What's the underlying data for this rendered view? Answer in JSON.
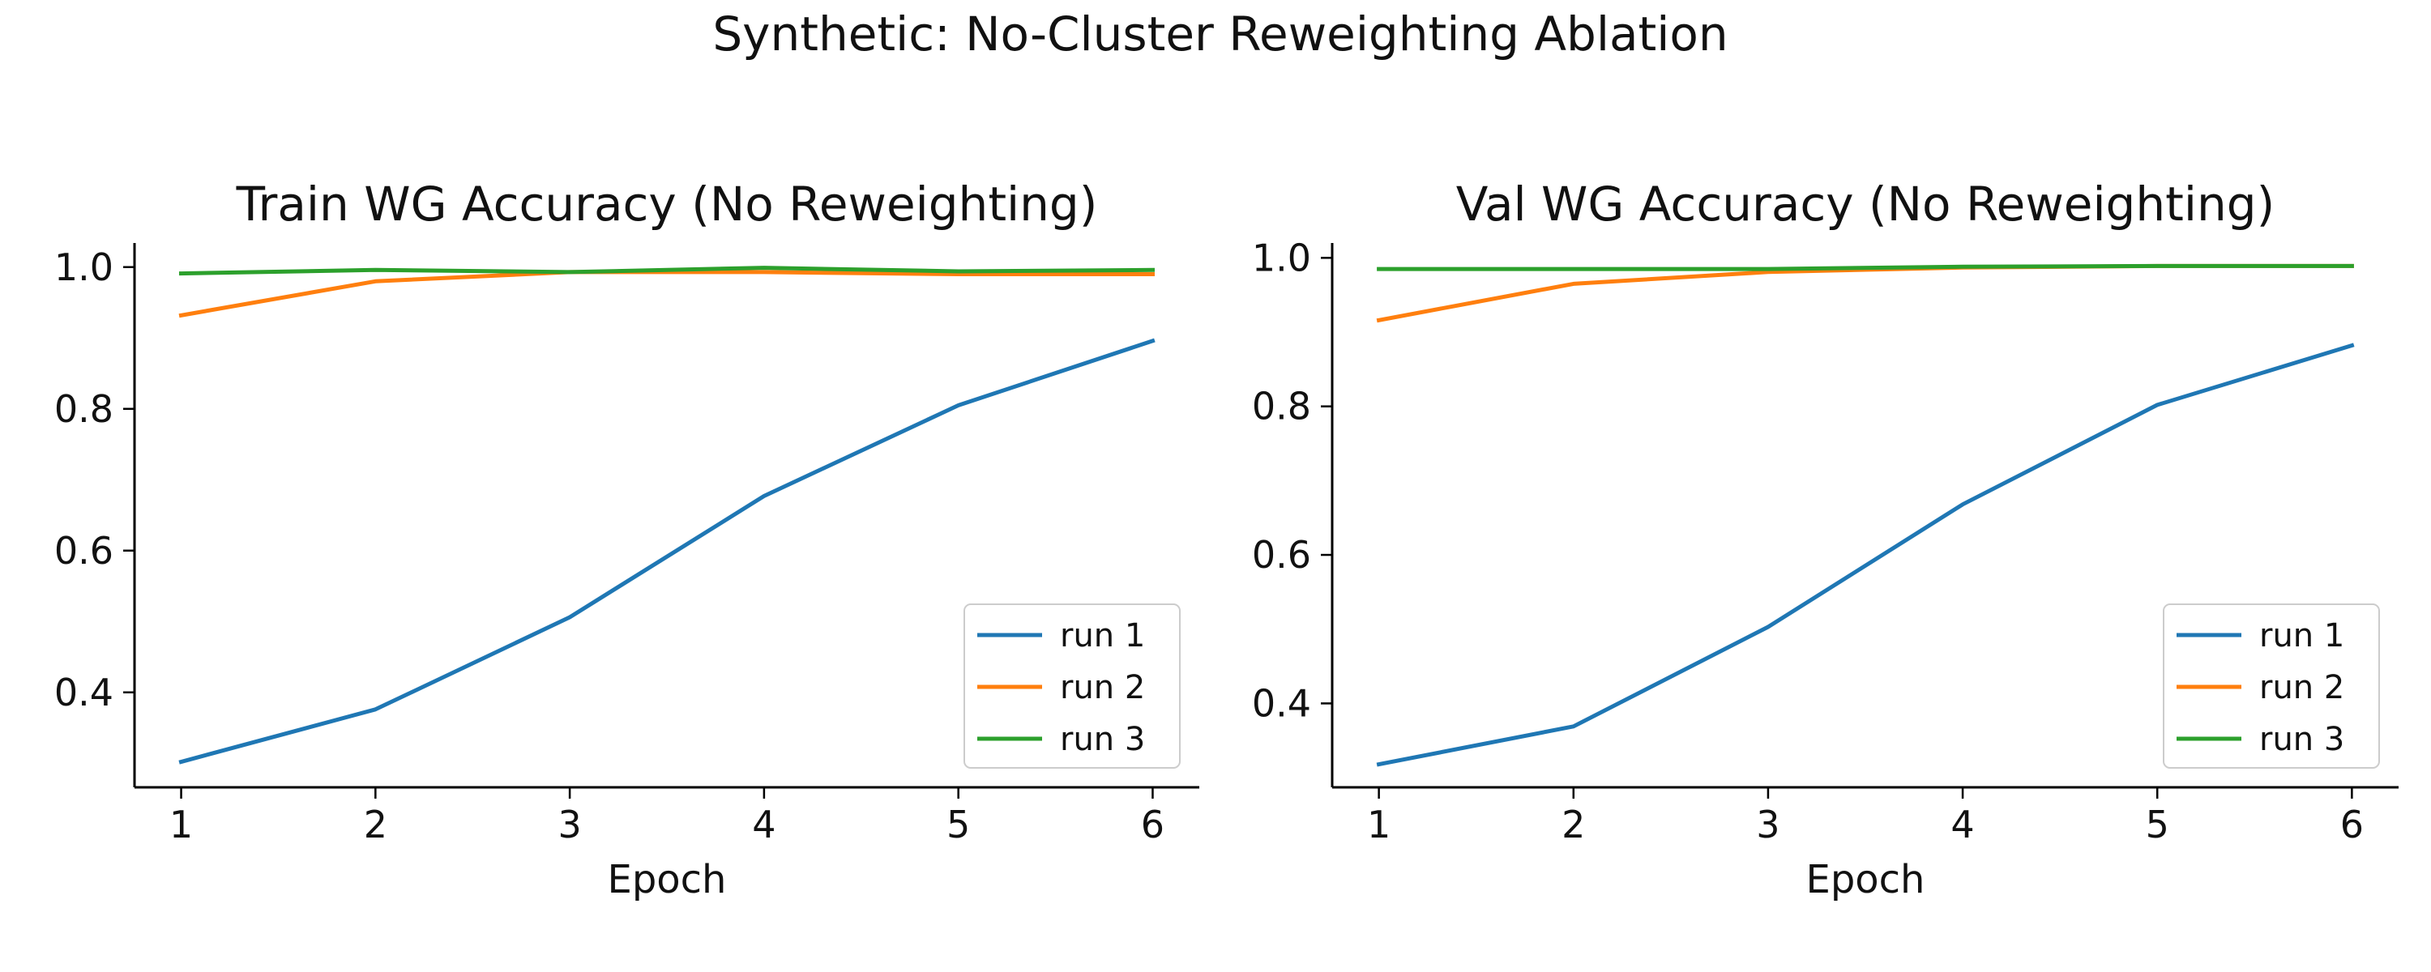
{
  "figure": {
    "title": "Synthetic: No-Cluster Reweighting Ablation"
  },
  "chart_data": [
    {
      "type": "line",
      "title": "Train WG Accuracy (No Reweighting)",
      "xlabel": "Epoch",
      "ylabel": "",
      "x": [
        1,
        2,
        3,
        4,
        5,
        6
      ],
      "xticks": [
        "1",
        "2",
        "3",
        "4",
        "5",
        "6"
      ],
      "xlim": [
        0.76,
        6.24
      ],
      "yticks": [
        "0.4",
        "0.6",
        "0.8",
        "1.0"
      ],
      "ylim": [
        0.266,
        1.034
      ],
      "grid": false,
      "legend_position": "lower right",
      "series": [
        {
          "name": "run 1",
          "color": "#1f77b4",
          "values": [
            0.302,
            0.376,
            0.506,
            0.677,
            0.805,
            0.896
          ]
        },
        {
          "name": "run 2",
          "color": "#ff7f0e",
          "values": [
            0.932,
            0.98,
            0.993,
            0.993,
            0.99,
            0.99
          ]
        },
        {
          "name": "run 3",
          "color": "#2ca02c",
          "values": [
            0.991,
            0.996,
            0.993,
            0.999,
            0.994,
            0.996
          ]
        }
      ]
    },
    {
      "type": "line",
      "title": "Val WG Accuracy (No Reweighting)",
      "xlabel": "Epoch",
      "ylabel": "",
      "x": [
        1,
        2,
        3,
        4,
        5,
        6
      ],
      "xticks": [
        "1",
        "2",
        "3",
        "4",
        "5",
        "6"
      ],
      "xlim": [
        0.76,
        6.24
      ],
      "yticks": [
        "0.4",
        "0.6",
        "0.8",
        "1.0"
      ],
      "ylim": [
        0.287,
        1.02
      ],
      "grid": false,
      "legend_position": "lower right",
      "series": [
        {
          "name": "run 1",
          "color": "#1f77b4",
          "values": [
            0.318,
            0.369,
            0.503,
            0.668,
            0.802,
            0.882
          ]
        },
        {
          "name": "run 2",
          "color": "#ff7f0e",
          "values": [
            0.916,
            0.965,
            0.981,
            0.987,
            0.989,
            0.989
          ]
        },
        {
          "name": "run 3",
          "color": "#2ca02c",
          "values": [
            0.985,
            0.985,
            0.985,
            0.988,
            0.989,
            0.989
          ]
        }
      ]
    }
  ]
}
